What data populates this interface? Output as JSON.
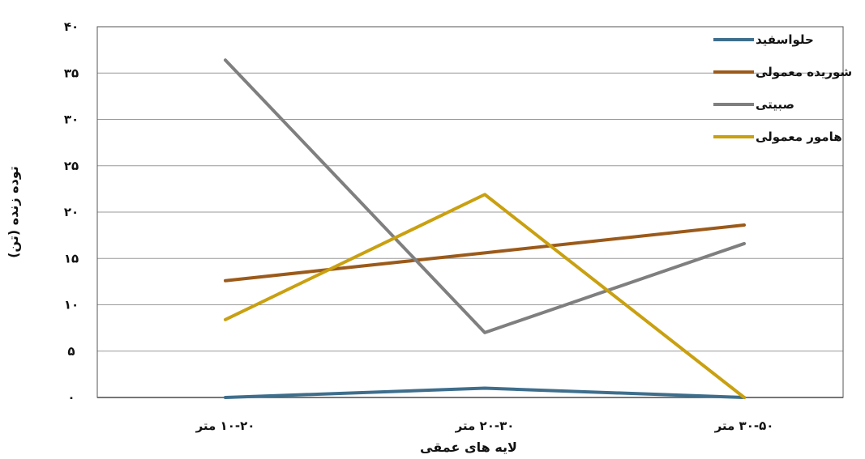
{
  "chart_data": {
    "type": "line",
    "categories": [
      "۱۰-۲۰ متر",
      "۲۰-۳۰ متر",
      "۳۰-۵۰ متر"
    ],
    "series": [
      {
        "name": "حلواسفید",
        "values": [
          0,
          1,
          0
        ],
        "color": "#3E6E8C"
      },
      {
        "name": "شوریده معمولی",
        "values": [
          12.6,
          15.6,
          18.6
        ],
        "color": "#9B5A1A"
      },
      {
        "name": "صبیتی",
        "values": [
          36.4,
          7,
          16.6
        ],
        "color": "#7F7F7F"
      },
      {
        "name": "هامور معمولی",
        "values": [
          8.4,
          21.9,
          0
        ],
        "color": "#C9A010"
      }
    ],
    "xlabel": "لایه های عمقی",
    "ylabel": "توده زنده (تن)",
    "ylim": [
      0,
      40
    ],
    "yticks": [
      0,
      5,
      10,
      15,
      20,
      25,
      30,
      35,
      40
    ],
    "ytick_labels": [
      "۰",
      "۵",
      "۱۰",
      "۱۵",
      "۲۰",
      "۲۵",
      "۳۰",
      "۳۵",
      "۴۰"
    ],
    "grid": true,
    "legend_position": "top-right"
  }
}
